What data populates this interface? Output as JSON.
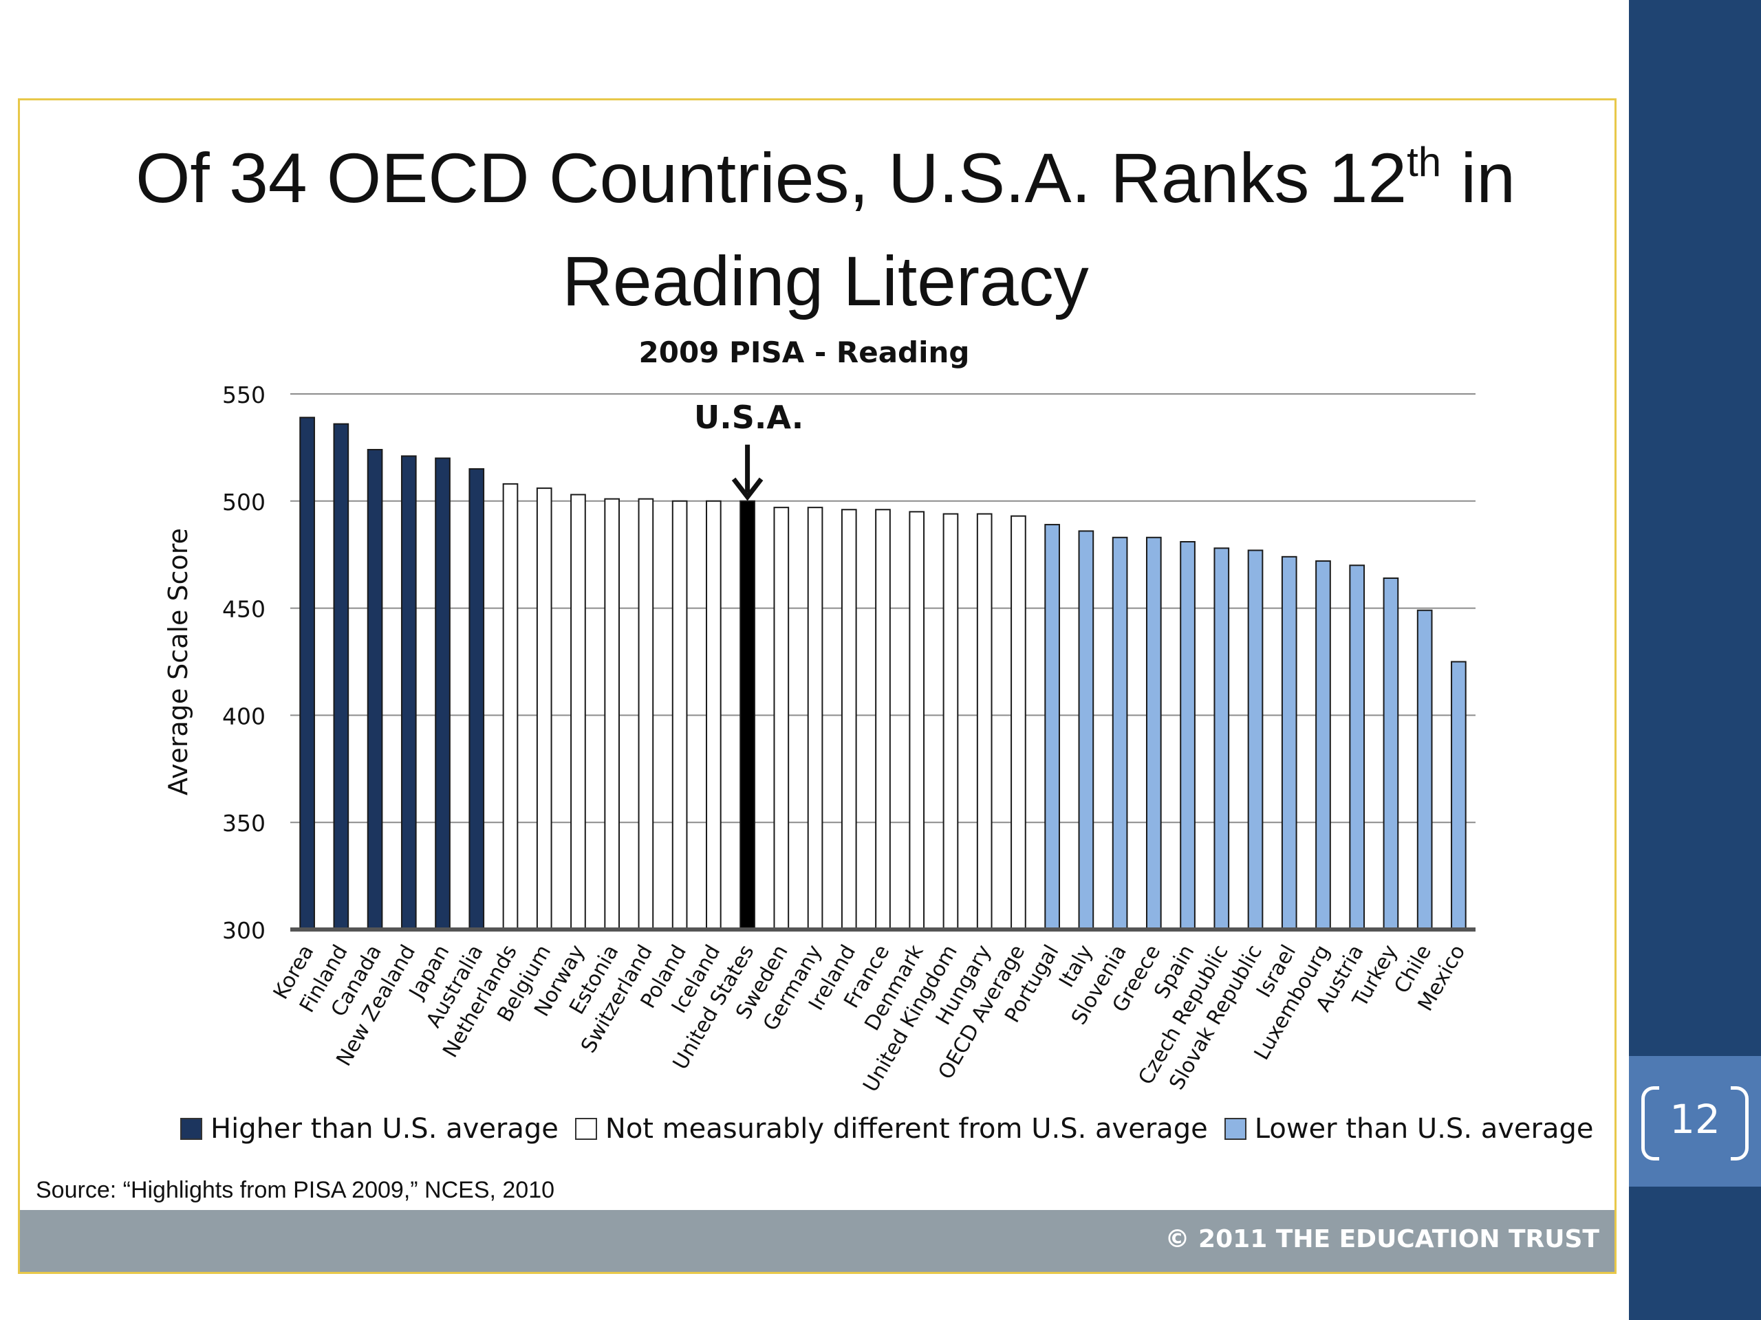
{
  "slide": {
    "title_line1_main": "Of 34 OECD Countries, U.S.A. Ranks 12",
    "title_line1_sup": "th",
    "title_line1_end": " in",
    "title_line2": "Reading Literacy",
    "page_number": "12",
    "source": "Source:  “Highlights from PISA 2009,” NCES, 2010",
    "copyright": "© 2011 THE EDUCATION TRUST",
    "colors": {
      "side_band": "#1f4472",
      "page_badge": "#4f7ab3",
      "frame_border": "#e8c84a",
      "footer_band": "#929ea6"
    }
  },
  "chart_data": {
    "type": "bar",
    "title": "2009 PISA - Reading",
    "xlabel": "",
    "ylabel": "Average Scale Score",
    "ylim": [
      300,
      550
    ],
    "yticks": [
      300,
      350,
      400,
      450,
      500,
      550
    ],
    "grid": true,
    "annotation": {
      "text": "U.S.A.",
      "target": "United States"
    },
    "categories": [
      "Korea",
      "Finland",
      "Canada",
      "New Zealand",
      "Japan",
      "Australia",
      "Netherlands",
      "Belgium",
      "Norway",
      "Estonia",
      "Switzerland",
      "Poland",
      "Iceland",
      "United States",
      "Sweden",
      "Germany",
      "Ireland",
      "France",
      "Denmark",
      "United Kingdom",
      "Hungary",
      "OECD Average",
      "Portugal",
      "Italy",
      "Slovenia",
      "Greece",
      "Spain",
      "Czech Republic",
      "Slovak Republic",
      "Israel",
      "Luxembourg",
      "Austria",
      "Turkey",
      "Chile",
      "Mexico"
    ],
    "values": [
      539,
      536,
      524,
      521,
      520,
      515,
      508,
      506,
      503,
      501,
      501,
      500,
      500,
      500,
      497,
      497,
      496,
      496,
      495,
      494,
      494,
      493,
      489,
      486,
      483,
      483,
      481,
      478,
      477,
      474,
      472,
      470,
      464,
      449,
      425
    ],
    "groups": [
      "higher",
      "higher",
      "higher",
      "higher",
      "higher",
      "higher",
      "same",
      "same",
      "same",
      "same",
      "same",
      "same",
      "same",
      "us",
      "same",
      "same",
      "same",
      "same",
      "same",
      "same",
      "same",
      "same",
      "lower",
      "lower",
      "lower",
      "lower",
      "lower",
      "lower",
      "lower",
      "lower",
      "lower",
      "lower",
      "lower",
      "lower",
      "lower"
    ],
    "group_colors": {
      "higher": "#1c355e",
      "same": "#ffffff",
      "us": "#000000",
      "lower": "#8eb4e3"
    },
    "legend_position": "bottom",
    "legend": [
      {
        "label": "Higher than U.S. average",
        "color": "#1c355e"
      },
      {
        "label": "Not measurably different from U.S. average",
        "color": "#ffffff"
      },
      {
        "label": "Lower than U.S. average",
        "color": "#8eb4e3"
      }
    ]
  }
}
